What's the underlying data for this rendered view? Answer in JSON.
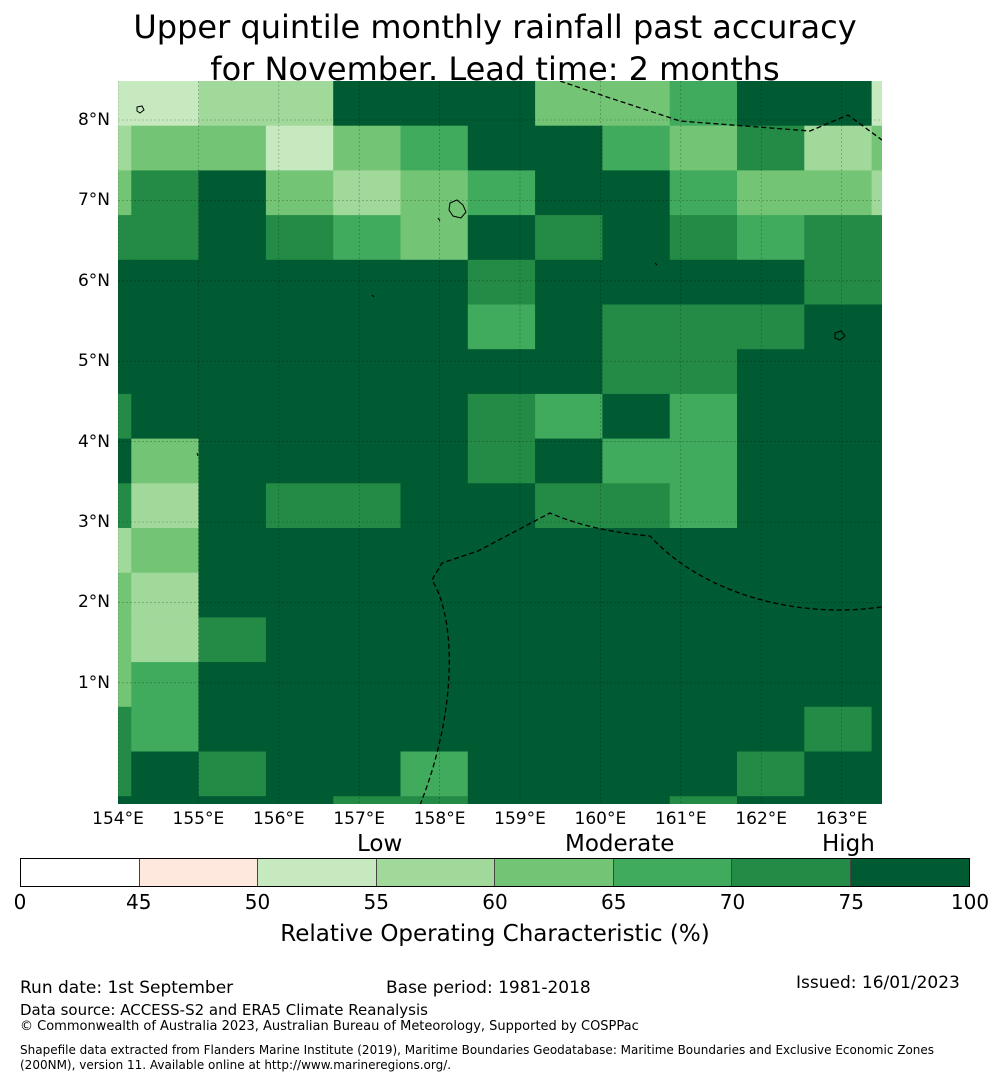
{
  "title": {
    "line1": "Upper quintile monthly rainfall past accuracy",
    "line2": "for November. Lead time: 2 months"
  },
  "map": {
    "latitude_labels": [
      "8°N",
      "7°N",
      "6°N",
      "5°N",
      "4°N",
      "3°N",
      "2°N",
      "1°N"
    ],
    "longitude_labels": [
      "154°E",
      "155°E",
      "156°E",
      "157°E",
      "158°E",
      "159°E",
      "160°E",
      "161°E",
      "162°E",
      "163°E"
    ],
    "gridline_style": "dashed",
    "boundary_style": "dashed",
    "grid_categories_rows": [
      [
        "50-55",
        "50-55",
        "55-60",
        "55-60",
        "75-100",
        "75-100",
        "75-100",
        "60-65",
        "60-65",
        "65-70",
        "75-100",
        "75-100",
        "50-55"
      ],
      [
        "55-60",
        "60-65",
        "60-65",
        "50-55",
        "60-65",
        "65-70",
        "75-100",
        "75-100",
        "65-70",
        "60-65",
        "70-75",
        "55-60",
        "60-65"
      ],
      [
        "60-65",
        "70-75",
        "75-100",
        "60-65",
        "55-60",
        "60-65",
        "65-70",
        "75-100",
        "75-100",
        "65-70",
        "60-65",
        "60-65",
        "55-60"
      ],
      [
        "70-75",
        "70-75",
        "75-100",
        "70-75",
        "65-70",
        "60-65",
        "75-100",
        "70-75",
        "75-100",
        "70-75",
        "65-70",
        "70-75",
        "70-75"
      ],
      [
        "75-100",
        "75-100",
        "75-100",
        "75-100",
        "75-100",
        "75-100",
        "70-75",
        "75-100",
        "75-100",
        "75-100",
        "75-100",
        "70-75",
        "70-75"
      ],
      [
        "75-100",
        "75-100",
        "75-100",
        "75-100",
        "75-100",
        "75-100",
        "65-70",
        "75-100",
        "70-75",
        "70-75",
        "70-75",
        "75-100",
        "75-100"
      ],
      [
        "75-100",
        "75-100",
        "75-100",
        "75-100",
        "75-100",
        "75-100",
        "75-100",
        "75-100",
        "70-75",
        "70-75",
        "75-100",
        "75-100",
        "75-100"
      ],
      [
        "70-75",
        "75-100",
        "75-100",
        "75-100",
        "75-100",
        "75-100",
        "70-75",
        "65-70",
        "75-100",
        "65-70",
        "75-100",
        "75-100",
        "75-100"
      ],
      [
        "75-100",
        "60-65",
        "75-100",
        "75-100",
        "75-100",
        "75-100",
        "70-75",
        "75-100",
        "65-70",
        "65-70",
        "75-100",
        "75-100",
        "75-100"
      ],
      [
        "70-75",
        "55-60",
        "75-100",
        "70-75",
        "70-75",
        "75-100",
        "75-100",
        "70-75",
        "70-75",
        "65-70",
        "75-100",
        "75-100",
        "75-100"
      ],
      [
        "55-60",
        "60-65",
        "75-100",
        "75-100",
        "75-100",
        "75-100",
        "75-100",
        "75-100",
        "75-100",
        "75-100",
        "75-100",
        "75-100",
        "75-100"
      ],
      [
        "60-65",
        "55-60",
        "75-100",
        "75-100",
        "75-100",
        "75-100",
        "75-100",
        "75-100",
        "75-100",
        "75-100",
        "75-100",
        "75-100",
        "75-100"
      ],
      [
        "60-65",
        "55-60",
        "70-75",
        "75-100",
        "75-100",
        "75-100",
        "75-100",
        "75-100",
        "75-100",
        "75-100",
        "75-100",
        "75-100",
        "75-100"
      ],
      [
        "60-65",
        "65-70",
        "75-100",
        "75-100",
        "75-100",
        "75-100",
        "75-100",
        "75-100",
        "75-100",
        "75-100",
        "75-100",
        "75-100",
        "75-100"
      ],
      [
        "70-75",
        "65-70",
        "75-100",
        "75-100",
        "75-100",
        "75-100",
        "75-100",
        "75-100",
        "75-100",
        "75-100",
        "75-100",
        "70-75",
        "75-100"
      ],
      [
        "70-75",
        "75-100",
        "70-75",
        "75-100",
        "75-100",
        "65-70",
        "75-100",
        "75-100",
        "75-100",
        "75-100",
        "70-75",
        "75-100",
        "75-100"
      ],
      [
        "75-100",
        "75-100",
        "75-100",
        "75-100",
        "70-75",
        "70-75",
        "75-100",
        "75-100",
        "75-100",
        "70-75",
        "75-100",
        "75-100",
        "75-100"
      ]
    ]
  },
  "legend": {
    "category_labels": {
      "low": "Low",
      "moderate": "Moderate",
      "high": "High"
    },
    "segments": [
      {
        "from": 0,
        "to": 45,
        "color": "#ffffff"
      },
      {
        "from": 45,
        "to": 50,
        "color": "#fee8de"
      },
      {
        "from": 50,
        "to": 55,
        "color": "#c7e9c0"
      },
      {
        "from": 55,
        "to": 60,
        "color": "#a1d99b"
      },
      {
        "from": 60,
        "to": 65,
        "color": "#74c476"
      },
      {
        "from": 65,
        "to": 70,
        "color": "#41ab5d"
      },
      {
        "from": 70,
        "to": 75,
        "color": "#238b45"
      },
      {
        "from": 75,
        "to": 100,
        "color": "#005a32"
      }
    ],
    "tick_labels": [
      "0",
      "45",
      "50",
      "55",
      "60",
      "65",
      "70",
      "75",
      "100"
    ],
    "label": "Relative Operating Characteristic (%)"
  },
  "footer": {
    "run_date": "Run date: 1st September",
    "base_period": "Base period: 1981-2018",
    "issued": "Issued: 16/01/2023",
    "data_source": "Data source: ACCESS-S2 and ERA5 Climate Reanalysis",
    "copyright": "© Commonwealth of Australia 2023, Australian Bureau of Meteorology, Supported by COSPPac",
    "shapefile": "Shapefile data extracted from Flanders Marine Institute (2019), Maritime Boundaries Geodatabase: Maritime Boundaries and Exclusive Economic Zones (200NM), version 11. Available online at http://www.marineregions.org/."
  }
}
